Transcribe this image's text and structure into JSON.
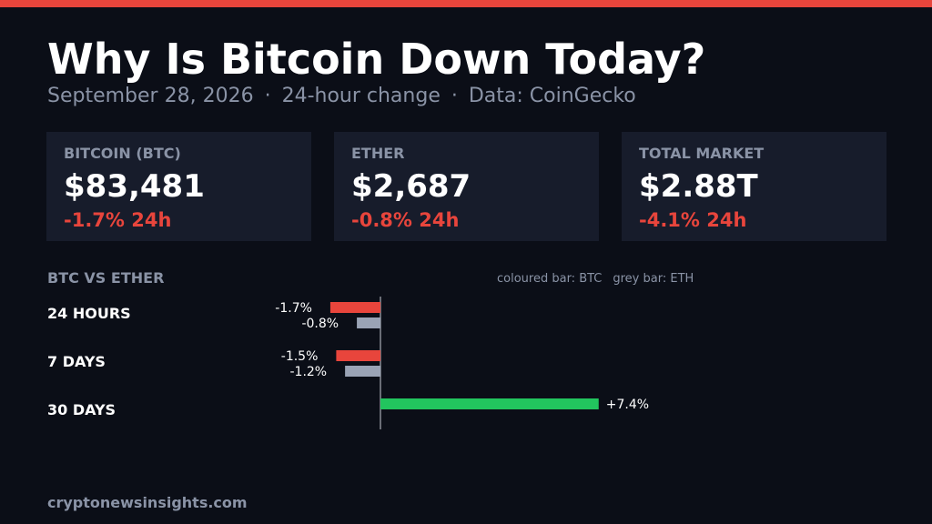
{
  "header": {
    "title": "Why Is Bitcoin Down Today?",
    "date": "September 28, 2026",
    "separator": "·",
    "change_note": "24-hour change",
    "source": "Data: CoinGecko"
  },
  "cards": [
    {
      "label": "BITCOIN (BTC)",
      "value": "$83,481",
      "change": "-1.7% 24h"
    },
    {
      "label": "ETHER",
      "value": "$2,687",
      "change": "-0.8% 24h"
    },
    {
      "label": "TOTAL MARKET",
      "value": "$2.88T",
      "change": "-4.1% 24h"
    }
  ],
  "colors": {
    "accent": "#e8453c",
    "negative": "#e8453c",
    "positive": "#22c55e",
    "eth_bar": "#9aa3b5",
    "background": "#0b0e17",
    "card_background": "#171c2b",
    "muted_text": "#8a93a6"
  },
  "chart_data": {
    "type": "bar",
    "orientation": "horizontal",
    "title": "BTC VS ETHER",
    "legend_text": [
      "coloured bar: BTC",
      "grey bar: ETH"
    ],
    "legend_position": "top-right",
    "categories": [
      "24 HOURS",
      "7 DAYS",
      "30 DAYS"
    ],
    "series": [
      {
        "name": "BTC",
        "values": [
          -1.7,
          -1.5,
          7.4
        ],
        "labels": [
          "-1.7%",
          "-1.5%",
          "+7.4%"
        ]
      },
      {
        "name": "ETH",
        "values": [
          -0.8,
          -1.2,
          null
        ],
        "labels": [
          "-0.8%",
          "-1.2%",
          ""
        ]
      }
    ],
    "units": "%",
    "grid": false
  },
  "footer": {
    "site": "cryptonewsinsights.com"
  }
}
